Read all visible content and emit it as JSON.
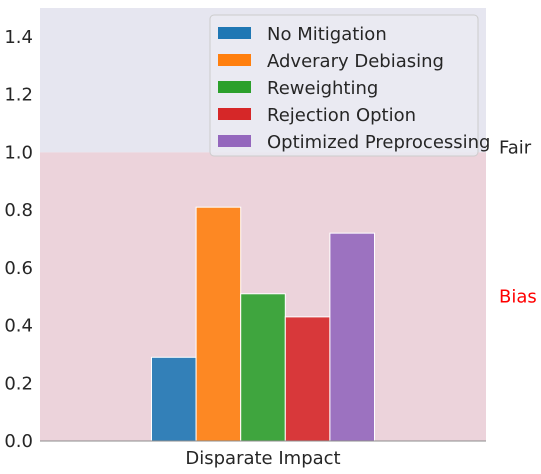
{
  "chart_data": {
    "type": "bar",
    "categories": [
      "Disparate Impact"
    ],
    "series": [
      {
        "name": "No Mitigation",
        "values": [
          0.29
        ],
        "color": "#1f77b4"
      },
      {
        "name": "Adverary Debiasing",
        "values": [
          0.81
        ],
        "color": "#ff7f0e"
      },
      {
        "name": "Reweighting",
        "values": [
          0.51
        ],
        "color": "#2ca02c"
      },
      {
        "name": "Rejection Option",
        "values": [
          0.43
        ],
        "color": "#d62728"
      },
      {
        "name": "Optimized Preprocessing",
        "values": [
          0.72
        ],
        "color": "#9467bd"
      }
    ],
    "ylim": [
      0,
      1.5
    ],
    "yticks": [
      "0.0",
      "0.2",
      "0.4",
      "0.6",
      "0.8",
      "1.0",
      "1.2",
      "1.4"
    ],
    "xlabel": "",
    "ylabel": "",
    "fair_threshold": 1.0,
    "regions": [
      {
        "label": "Fair",
        "range": [
          1.0,
          1.5
        ],
        "color": "#e6e6f0",
        "label_color": "#262626"
      },
      {
        "label": "Bias",
        "range": [
          0.0,
          1.0
        ],
        "color": "#ecd3db",
        "label_color": "#ff0000"
      }
    ],
    "legend": "top-right",
    "grid": false
  }
}
